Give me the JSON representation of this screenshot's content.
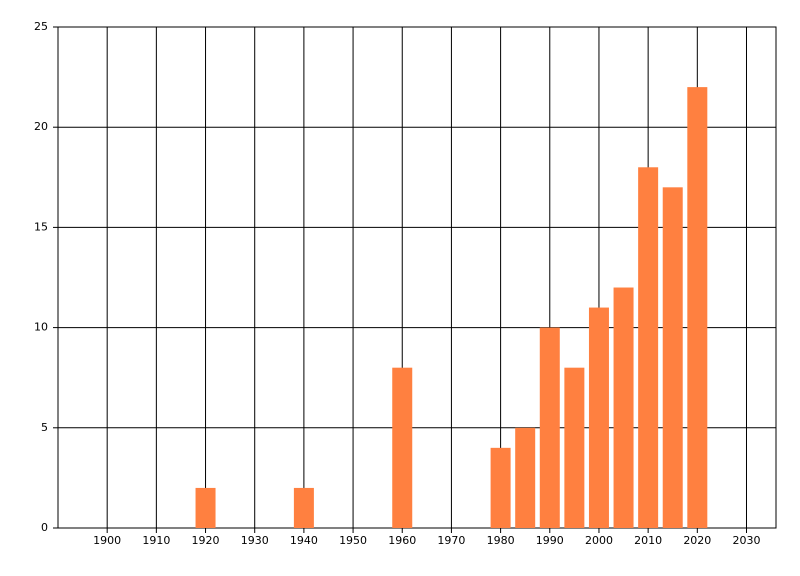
{
  "chart_data": {
    "type": "bar",
    "x": [
      1920,
      1940,
      1960,
      1980,
      1985,
      1990,
      1995,
      2000,
      2005,
      2010,
      2015,
      2020
    ],
    "values": [
      2,
      2,
      8,
      4,
      5,
      10,
      8,
      11,
      12,
      18,
      17,
      22
    ],
    "color": "#ff8040",
    "xlim": [
      1890,
      2036
    ],
    "xticks": [
      1900,
      1910,
      1920,
      1930,
      1940,
      1950,
      1960,
      1970,
      1980,
      1990,
      2000,
      2010,
      2020,
      2030
    ],
    "ylim": [
      0,
      25
    ],
    "yticks": [
      0,
      5,
      10,
      15,
      20,
      25
    ],
    "grid": true
  }
}
